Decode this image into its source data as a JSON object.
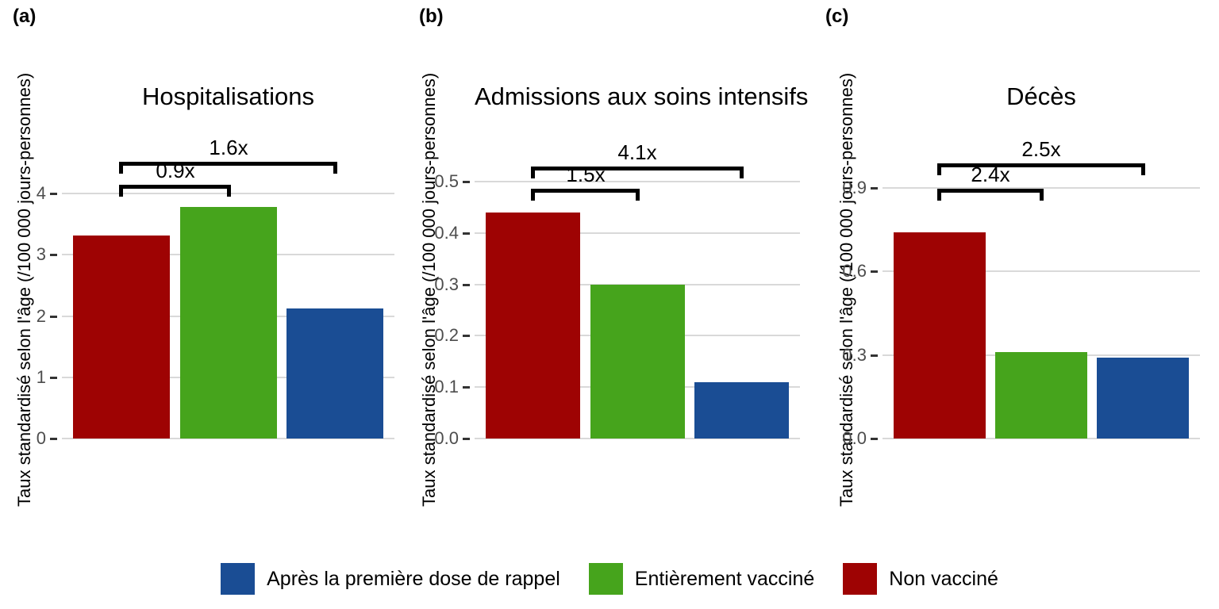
{
  "figure": {
    "y_axis_label": "Taux standardisé selon l'âge (/100 000 jours-personnes)"
  },
  "colors": {
    "non_vaccine": "#9e0303",
    "entierement_vaccine": "#46a41c",
    "rappel": "#1a4d94",
    "gridline": "#d9d9d9",
    "tick_text": "#4d4d4d",
    "tick_mark": "#333333",
    "annotation": "#000000"
  },
  "legend": {
    "items": [
      {
        "key": "rappel",
        "label": "Après la première dose de rappel",
        "color": "#1a4d94"
      },
      {
        "key": "entierement_vaccine",
        "label": "Entièrement vacciné",
        "color": "#46a41c"
      },
      {
        "key": "non_vaccine",
        "label": "Non vacciné",
        "color": "#9e0303"
      }
    ]
  },
  "chart_data": [
    {
      "type": "bar",
      "panel_letter": "(a)",
      "title": "Hospitalisations",
      "ylabel": "Taux standardisé selon l'âge (/100 000 jours-personnes)",
      "categories": [
        "Non vacciné",
        "Entièrement vacciné",
        "Après la première dose de rappel"
      ],
      "values": [
        3.32,
        3.78,
        2.12
      ],
      "bar_colors": [
        "#9e0303",
        "#46a41c",
        "#1a4d94"
      ],
      "yticks": [
        {
          "label": "0",
          "value": 0
        },
        {
          "label": "1",
          "value": 1
        },
        {
          "label": "2",
          "value": 2
        },
        {
          "label": "3",
          "value": 3
        },
        {
          "label": "4",
          "value": 4
        }
      ],
      "ylim": [
        0,
        5.2
      ],
      "grid": true,
      "annotations": [
        {
          "label": "0.9x",
          "from_bar": 0,
          "to_bar": 1,
          "tier": "inner"
        },
        {
          "label": "1.6x",
          "from_bar": 0,
          "to_bar": 2,
          "tier": "outer"
        }
      ]
    },
    {
      "type": "bar",
      "panel_letter": "(b)",
      "title": "Admissions aux soins intensifs",
      "ylabel": "Taux standardisé selon l'âge (/100 000 jours-personnes)",
      "categories": [
        "Non vacciné",
        "Entièrement vacciné",
        "Après la première dose de rappel"
      ],
      "values": [
        0.44,
        0.3,
        0.11
      ],
      "bar_colors": [
        "#9e0303",
        "#46a41c",
        "#1a4d94"
      ],
      "yticks": [
        {
          "label": "0.0",
          "value": 0
        },
        {
          "label": "0.1",
          "value": 0.1
        },
        {
          "label": "0.2",
          "value": 0.2
        },
        {
          "label": "0.3",
          "value": 0.3
        },
        {
          "label": "0.4",
          "value": 0.4
        },
        {
          "label": "0.5",
          "value": 0.5
        }
      ],
      "ylim": [
        0,
        0.62
      ],
      "grid": true,
      "annotations": [
        {
          "label": "1.5x",
          "from_bar": 0,
          "to_bar": 1,
          "tier": "inner"
        },
        {
          "label": "4.1x",
          "from_bar": 0,
          "to_bar": 2,
          "tier": "outer"
        }
      ]
    },
    {
      "type": "bar",
      "panel_letter": "(c)",
      "title": "Décès",
      "ylabel": "Taux standardisé selon l'âge (/100 000 jours-personnes)",
      "categories": [
        "Non vacciné",
        "Entièrement vacciné",
        "Après la première dose de rappel"
      ],
      "values": [
        0.74,
        0.31,
        0.29
      ],
      "bar_colors": [
        "#9e0303",
        "#46a41c",
        "#1a4d94"
      ],
      "yticks": [
        {
          "label": "0.0",
          "value": 0
        },
        {
          "label": "0.3",
          "value": 0.3
        },
        {
          "label": "0.6",
          "value": 0.6
        },
        {
          "label": "0.9",
          "value": 0.9
        }
      ],
      "ylim": [
        0,
        1.14
      ],
      "grid": true,
      "annotations": [
        {
          "label": "2.4x",
          "from_bar": 0,
          "to_bar": 1,
          "tier": "inner"
        },
        {
          "label": "2.5x",
          "from_bar": 0,
          "to_bar": 2,
          "tier": "outer"
        }
      ]
    }
  ]
}
